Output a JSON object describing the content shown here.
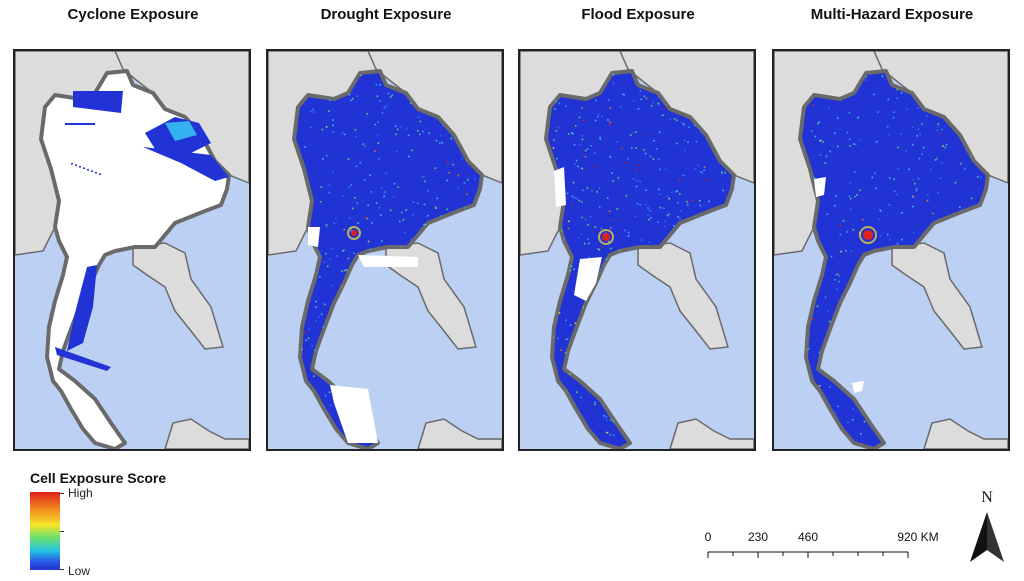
{
  "panels": [
    {
      "title": "Cyclone Exposure",
      "hazard": "cyclone"
    },
    {
      "title": "Drought Exposure",
      "hazard": "drought"
    },
    {
      "title": "Flood Exposure",
      "hazard": "flood"
    },
    {
      "title": "Multi-Hazard Exposure",
      "hazard": "multi"
    }
  ],
  "legend": {
    "title": "Cell Exposure Score",
    "high_label": "High",
    "low_label": "Low",
    "colors": [
      "#e0201b",
      "#f08a1e",
      "#f5e52a",
      "#6fe06a",
      "#24c4e0",
      "#2a55e6",
      "#2233cc"
    ]
  },
  "scalebar": {
    "labels": [
      "0",
      "230",
      "460",
      "920 KM"
    ]
  },
  "north_arrow": {
    "label": "N"
  },
  "colors": {
    "sea": "#bcd0f4",
    "neighbor_land": "#dcdcdc",
    "border": "#6a6a6a",
    "no_exposure": "#ffffff",
    "low_exposure": "#2233d6"
  }
}
